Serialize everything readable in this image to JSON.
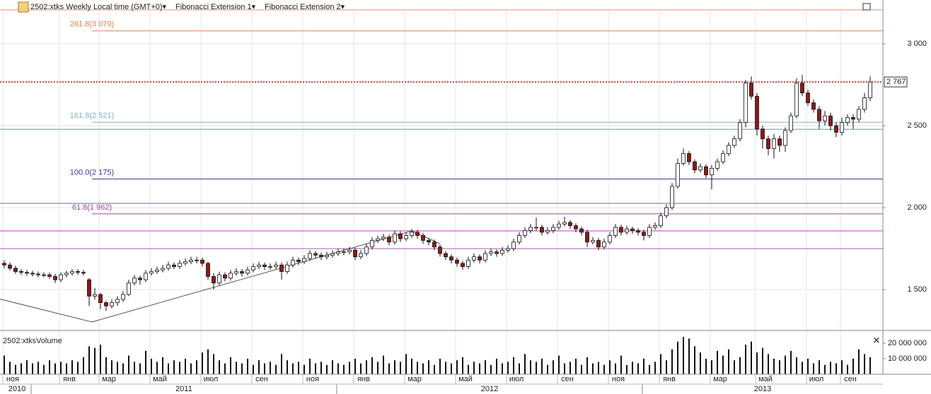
{
  "chart_data": {
    "type": "candlestick",
    "header": [
      "2502:xtks Weekly Local time (GMT+0)▾",
      "Fibonacci Extension 1▾",
      "Fibonacci Extension 2▾"
    ],
    "volume_title": "2502:xtksVolume",
    "ylim": [
      1259,
      3207
    ],
    "yticks": [
      {
        "value": 3000,
        "label": "3 000"
      },
      {
        "value": 2500,
        "label": "2 500"
      },
      {
        "value": 2000,
        "label": "2 000"
      },
      {
        "value": 1500,
        "label": "1 500"
      }
    ],
    "last_price": {
      "value": 2767,
      "label": "2 767"
    },
    "up_color": "#ffffff",
    "down_color": "#8b1a1a",
    "levels": [
      {
        "value": 3207,
        "color": "#e0907a"
      },
      {
        "value": 3079,
        "label": "261.8(3 079)",
        "color": "#e0804a"
      },
      {
        "value": 2521,
        "label": "161.8(2 521)",
        "color": "#7fb0c0"
      },
      {
        "value": 2478,
        "color": "#6f93a8"
      },
      {
        "value": 2175,
        "label": "100.0(2 175)",
        "color": "#3a3aa0"
      },
      {
        "value": 2026,
        "color": "#5a6fa8"
      },
      {
        "value": 1962,
        "label": "61.8(1 962)",
        "color": "#9a4a9a"
      },
      {
        "value": 1858,
        "color": "#d030d0"
      },
      {
        "value": 1750,
        "color": "#a060a0"
      }
    ],
    "zigzag": {
      "x": [
        -1,
        15.5,
        72,
        77
      ],
      "y": [
        1444,
        1302,
        1858,
        1780
      ]
    },
    "candles": [
      [
        1660,
        1680,
        1630,
        1650
      ],
      [
        1650,
        1665,
        1615,
        1630
      ],
      [
        1630,
        1645,
        1595,
        1610
      ],
      [
        1610,
        1625,
        1590,
        1605
      ],
      [
        1605,
        1620,
        1585,
        1600
      ],
      [
        1600,
        1615,
        1580,
        1595
      ],
      [
        1595,
        1610,
        1575,
        1590
      ],
      [
        1590,
        1605,
        1575,
        1590
      ],
      [
        1590,
        1605,
        1565,
        1580
      ],
      [
        1580,
        1595,
        1540,
        1560
      ],
      [
        1560,
        1605,
        1545,
        1590
      ],
      [
        1590,
        1615,
        1575,
        1600
      ],
      [
        1600,
        1625,
        1585,
        1610
      ],
      [
        1610,
        1625,
        1590,
        1605
      ],
      [
        1605,
        1620,
        1585,
        1600
      ],
      [
        1560,
        1570,
        1400,
        1460
      ],
      [
        1460,
        1510,
        1440,
        1470
      ],
      [
        1470,
        1480,
        1380,
        1420
      ],
      [
        1420,
        1430,
        1370,
        1400
      ],
      [
        1400,
        1440,
        1385,
        1420
      ],
      [
        1420,
        1460,
        1400,
        1440
      ],
      [
        1440,
        1490,
        1425,
        1470
      ],
      [
        1470,
        1560,
        1460,
        1540
      ],
      [
        1540,
        1590,
        1525,
        1570
      ],
      [
        1570,
        1585,
        1530,
        1560
      ],
      [
        1560,
        1620,
        1545,
        1600
      ],
      [
        1600,
        1630,
        1585,
        1610
      ],
      [
        1610,
        1640,
        1595,
        1620
      ],
      [
        1620,
        1650,
        1605,
        1630
      ],
      [
        1630,
        1670,
        1615,
        1650
      ],
      [
        1650,
        1665,
        1625,
        1640
      ],
      [
        1640,
        1680,
        1625,
        1660
      ],
      [
        1660,
        1690,
        1645,
        1670
      ],
      [
        1670,
        1700,
        1655,
        1680
      ],
      [
        1680,
        1700,
        1660,
        1680
      ],
      [
        1680,
        1695,
        1640,
        1660
      ],
      [
        1660,
        1670,
        1560,
        1580
      ],
      [
        1580,
        1600,
        1500,
        1540
      ],
      [
        1540,
        1610,
        1525,
        1590
      ],
      [
        1590,
        1605,
        1550,
        1570
      ],
      [
        1570,
        1620,
        1555,
        1600
      ],
      [
        1600,
        1630,
        1585,
        1610
      ],
      [
        1610,
        1625,
        1580,
        1600
      ],
      [
        1600,
        1640,
        1585,
        1620
      ],
      [
        1620,
        1660,
        1605,
        1640
      ],
      [
        1640,
        1670,
        1625,
        1650
      ],
      [
        1650,
        1665,
        1620,
        1640
      ],
      [
        1640,
        1660,
        1620,
        1640
      ],
      [
        1640,
        1670,
        1625,
        1650
      ],
      [
        1650,
        1665,
        1560,
        1610
      ],
      [
        1610,
        1670,
        1595,
        1650
      ],
      [
        1650,
        1700,
        1635,
        1680
      ],
      [
        1680,
        1695,
        1650,
        1670
      ],
      [
        1670,
        1710,
        1655,
        1690
      ],
      [
        1690,
        1740,
        1675,
        1720
      ],
      [
        1720,
        1735,
        1690,
        1710
      ],
      [
        1710,
        1725,
        1680,
        1700
      ],
      [
        1700,
        1730,
        1685,
        1710
      ],
      [
        1710,
        1740,
        1695,
        1720
      ],
      [
        1720,
        1750,
        1705,
        1730
      ],
      [
        1730,
        1750,
        1710,
        1730
      ],
      [
        1730,
        1760,
        1715,
        1740
      ],
      [
        1740,
        1755,
        1680,
        1700
      ],
      [
        1700,
        1740,
        1685,
        1720
      ],
      [
        1720,
        1780,
        1705,
        1760
      ],
      [
        1760,
        1820,
        1745,
        1800
      ],
      [
        1800,
        1830,
        1785,
        1810
      ],
      [
        1810,
        1840,
        1795,
        1820
      ],
      [
        1820,
        1835,
        1770,
        1790
      ],
      [
        1790,
        1860,
        1775,
        1840
      ],
      [
        1840,
        1855,
        1790,
        1810
      ],
      [
        1810,
        1850,
        1795,
        1830
      ],
      [
        1830,
        1870,
        1815,
        1850
      ],
      [
        1850,
        1865,
        1810,
        1830
      ],
      [
        1830,
        1845,
        1780,
        1800
      ],
      [
        1800,
        1815,
        1770,
        1790
      ],
      [
        1790,
        1805,
        1740,
        1760
      ],
      [
        1760,
        1775,
        1700,
        1720
      ],
      [
        1720,
        1735,
        1680,
        1700
      ],
      [
        1700,
        1715,
        1660,
        1680
      ],
      [
        1680,
        1695,
        1640,
        1660
      ],
      [
        1660,
        1675,
        1620,
        1640
      ],
      [
        1640,
        1700,
        1625,
        1680
      ],
      [
        1680,
        1720,
        1665,
        1700
      ],
      [
        1700,
        1715,
        1660,
        1680
      ],
      [
        1680,
        1740,
        1665,
        1720
      ],
      [
        1720,
        1750,
        1705,
        1730
      ],
      [
        1730,
        1745,
        1700,
        1720
      ],
      [
        1720,
        1760,
        1705,
        1740
      ],
      [
        1740,
        1770,
        1725,
        1750
      ],
      [
        1750,
        1810,
        1735,
        1790
      ],
      [
        1790,
        1850,
        1775,
        1830
      ],
      [
        1830,
        1880,
        1815,
        1860
      ],
      [
        1860,
        1900,
        1845,
        1880
      ],
      [
        1880,
        1940,
        1860,
        1880
      ],
      [
        1880,
        1895,
        1830,
        1850
      ],
      [
        1850,
        1880,
        1835,
        1860
      ],
      [
        1860,
        1900,
        1845,
        1880
      ],
      [
        1880,
        1920,
        1865,
        1900
      ],
      [
        1900,
        1945,
        1885,
        1910
      ],
      [
        1910,
        1925,
        1870,
        1890
      ],
      [
        1890,
        1905,
        1850,
        1870
      ],
      [
        1870,
        1885,
        1830,
        1850
      ],
      [
        1850,
        1865,
        1760,
        1790
      ],
      [
        1790,
        1820,
        1775,
        1800
      ],
      [
        1800,
        1815,
        1740,
        1760
      ],
      [
        1760,
        1810,
        1745,
        1790
      ],
      [
        1790,
        1850,
        1775,
        1830
      ],
      [
        1830,
        1900,
        1815,
        1880
      ],
      [
        1880,
        1895,
        1830,
        1850
      ],
      [
        1850,
        1890,
        1835,
        1870
      ],
      [
        1870,
        1885,
        1840,
        1860
      ],
      [
        1860,
        1875,
        1830,
        1850
      ],
      [
        1850,
        1865,
        1800,
        1830
      ],
      [
        1830,
        1900,
        1815,
        1880
      ],
      [
        1880,
        1910,
        1865,
        1890
      ],
      [
        1890,
        1970,
        1875,
        1950
      ],
      [
        1950,
        2020,
        1935,
        2000
      ],
      [
        2000,
        2150,
        1985,
        2130
      ],
      [
        2130,
        2300,
        2115,
        2270
      ],
      [
        2270,
        2360,
        2255,
        2330
      ],
      [
        2330,
        2345,
        2260,
        2280
      ],
      [
        2280,
        2295,
        2210,
        2230
      ],
      [
        2230,
        2270,
        2215,
        2250
      ],
      [
        2250,
        2265,
        2180,
        2200
      ],
      [
        2200,
        2260,
        2110,
        2240
      ],
      [
        2240,
        2300,
        2225,
        2280
      ],
      [
        2280,
        2350,
        2265,
        2330
      ],
      [
        2330,
        2400,
        2315,
        2380
      ],
      [
        2380,
        2440,
        2365,
        2420
      ],
      [
        2420,
        2540,
        2405,
        2520
      ],
      [
        2520,
        2780,
        2490,
        2760
      ],
      [
        2760,
        2800,
        2660,
        2680
      ],
      [
        2680,
        2700,
        2440,
        2480
      ],
      [
        2480,
        2500,
        2360,
        2420
      ],
      [
        2420,
        2440,
        2320,
        2360
      ],
      [
        2360,
        2450,
        2300,
        2420
      ],
      [
        2420,
        2440,
        2340,
        2380
      ],
      [
        2380,
        2490,
        2340,
        2470
      ],
      [
        2470,
        2580,
        2455,
        2560
      ],
      [
        2560,
        2790,
        2545,
        2760
      ],
      [
        2760,
        2810,
        2680,
        2700
      ],
      [
        2700,
        2720,
        2620,
        2640
      ],
      [
        2640,
        2660,
        2580,
        2600
      ],
      [
        2600,
        2620,
        2480,
        2530
      ],
      [
        2530,
        2590,
        2500,
        2560
      ],
      [
        2560,
        2580,
        2470,
        2500
      ],
      [
        2500,
        2520,
        2430,
        2460
      ],
      [
        2460,
        2550,
        2440,
        2520
      ],
      [
        2520,
        2570,
        2500,
        2550
      ],
      [
        2550,
        2570,
        2480,
        2540
      ],
      [
        2540,
        2620,
        2520,
        2600
      ],
      [
        2600,
        2700,
        2580,
        2670
      ],
      [
        2670,
        2800,
        2650,
        2767
      ]
    ],
    "volume": [
      12000000.0,
      8000000.0,
      6000000.0,
      7000000.0,
      9000000.0,
      7000000.0,
      8000000.0,
      6000000.0,
      9000000.0,
      7000000.0,
      8000000.0,
      7000000.0,
      9000000.0,
      8000000.0,
      11000000.0,
      18000000.0,
      17000000.0,
      19000000.0,
      11000000.0,
      9000000.0,
      8000000.0,
      7000000.0,
      12000000.0,
      8000000.0,
      7000000.0,
      15000000.0,
      10000000.0,
      8000000.0,
      11000000.0,
      7000000.0,
      9000000.0,
      8000000.0,
      10000000.0,
      7000000.0,
      9000000.0,
      14000000.0,
      16000000.0,
      13000000.0,
      9000000.0,
      7000000.0,
      11000000.0,
      8000000.0,
      7000000.0,
      10000000.0,
      6000000.0,
      9000000.0,
      7000000.0,
      8000000.0,
      6000000.0,
      13000000.0,
      9000000.0,
      7000000.0,
      8000000.0,
      6000000.0,
      10000000.0,
      7000000.0,
      8000000.0,
      6000000.0,
      9000000.0,
      7000000.0,
      6000000.0,
      8000000.0,
      10000000.0,
      7000000.0,
      9000000.0,
      11000000.0,
      8000000.0,
      12000000.0,
      7000000.0,
      9000000.0,
      8000000.0,
      13000000.0,
      10000000.0,
      8000000.0,
      7000000.0,
      9000000.0,
      6000000.0,
      10000000.0,
      8000000.0,
      7000000.0,
      9000000.0,
      11000000.0,
      6000000.0,
      8000000.0,
      7000000.0,
      9000000.0,
      6000000.0,
      10000000.0,
      7000000.0,
      8000000.0,
      11000000.0,
      7000000.0,
      13000000.0,
      9000000.0,
      8000000.0,
      10000000.0,
      6000000.0,
      9000000.0,
      12000000.0,
      7000000.0,
      8000000.0,
      10000000.0,
      6000000.0,
      11000000.0,
      7000000.0,
      8000000.0,
      6000000.0,
      9000000.0,
      7000000.0,
      12000000.0,
      6000000.0,
      8000000.0,
      7000000.0,
      10000000.0,
      6000000.0,
      8000000.0,
      13000000.0,
      9000000.0,
      16000000.0,
      21000000.0,
      24000000.0,
      23000000.0,
      18000000.0,
      14000000.0,
      10000000.0,
      9000000.0,
      15000000.0,
      12000000.0,
      16000000.0,
      9000000.0,
      11000000.0,
      19000000.0,
      21000000.0,
      14000000.0,
      17000000.0,
      13000000.0,
      10000000.0,
      9000000.0,
      12000000.0,
      15000000.0,
      11000000.0,
      8000000.0,
      10000000.0,
      7000000.0,
      9000000.0,
      6000000.0,
      8000000.0,
      7000000.0,
      9000000.0,
      6000000.0,
      10000000.0,
      16000000.0,
      13000000.0,
      11000000.0
    ],
    "volume_ylim": [
      0,
      25000000
    ],
    "volume_ticks": [
      {
        "value": 20000000,
        "label": "20 000 000"
      },
      {
        "value": 10000000,
        "label": "10 000 000"
      }
    ],
    "months": [
      {
        "label": "ноя",
        "index": 0
      },
      {
        "label": "янв",
        "index": 10
      },
      {
        "label": "мар",
        "index": 17
      },
      {
        "label": "май",
        "index": 26
      },
      {
        "label": "июл",
        "index": 35
      },
      {
        "label": "сен",
        "index": 44
      },
      {
        "label": "ноя",
        "index": 53
      },
      {
        "label": "янв",
        "index": 62
      },
      {
        "label": "мар",
        "index": 71
      },
      {
        "label": "май",
        "index": 80
      },
      {
        "label": "июл",
        "index": 89
      },
      {
        "label": "сен",
        "index": 98
      },
      {
        "label": "ноя",
        "index": 107
      },
      {
        "label": "янв",
        "index": 116
      },
      {
        "label": "мар",
        "index": 125
      },
      {
        "label": "май",
        "index": 133
      },
      {
        "label": "июл",
        "index": 142
      },
      {
        "label": "сен",
        "index": 148
      }
    ],
    "years": [
      {
        "label": "2010",
        "index": 0
      },
      {
        "label": "2011",
        "index": 5
      },
      {
        "label": "2012",
        "index": 59
      },
      {
        "label": "2013",
        "index": 113
      }
    ]
  }
}
